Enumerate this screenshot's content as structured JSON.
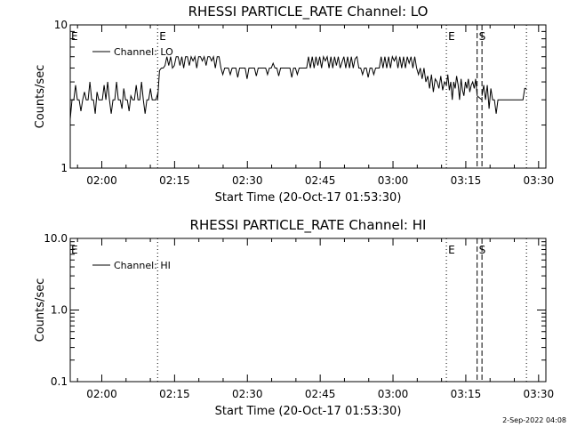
{
  "footer": {
    "timestamp": "2-Sep-2022 04:08"
  },
  "chart_data": [
    {
      "type": "line",
      "title": "RHESSI PARTICLE_RATE Channel: LO",
      "xlabel": "Start Time (20-Oct-17 01:53:30)",
      "ylabel": "Counts/sec",
      "yscale": "log",
      "ylim": [
        1,
        10
      ],
      "ytick_values": [
        1,
        10
      ],
      "ytick_labels": [
        "1",
        "10"
      ],
      "xlim": [
        "01:53:30",
        "03:31:30"
      ],
      "xtick_values": [
        "02:00",
        "02:15",
        "02:30",
        "02:45",
        "03:00",
        "03:15",
        "03:30"
      ],
      "xtick_labels": [
        "02:00",
        "02:15",
        "02:30",
        "02:45",
        "03:00",
        "03:15",
        "03:30"
      ],
      "legend": {
        "label": "Channel: LO",
        "placement": "top-left"
      },
      "event_lines": [
        {
          "time": "02:11:30",
          "style": "dotted",
          "label": "E"
        },
        {
          "time": "03:11:00",
          "style": "dotted",
          "label": "E"
        },
        {
          "time": "03:17:20",
          "style": "dashed",
          "label": "S"
        },
        {
          "time": "03:18:20",
          "style": "dashed",
          "label": ""
        },
        {
          "time": "03:27:30",
          "style": "dotted",
          "label": ""
        }
      ],
      "edge_labels": [
        {
          "text": "E",
          "time": "01:53:30"
        }
      ],
      "series": [
        {
          "name": "Channel: LO",
          "segments": [
            {
              "start": "01:53:30",
              "end": "02:11:30",
              "values": [
                2.2,
                3,
                3,
                3.8,
                3,
                3,
                2.5,
                3,
                3.4,
                3,
                3,
                4,
                3,
                3,
                2.4,
                3.4,
                3,
                3,
                3,
                3.8,
                3,
                4,
                3,
                2.4,
                3,
                3,
                4,
                3,
                3,
                2.6,
                3.6,
                3,
                3,
                2.5,
                3.2,
                3,
                3,
                3.8,
                3,
                3,
                4,
                3,
                2.4,
                3,
                3,
                3.6,
                3,
                3,
                3,
                3.3
              ]
            },
            {
              "start": "02:11:30",
              "end": "03:11:00",
              "values": [
                3,
                4.8,
                5,
                5,
                5.2,
                6,
                5.2,
                6,
                5,
                5.2,
                6,
                6,
                5.2,
                6,
                5,
                6,
                6,
                5.2,
                6,
                5.6,
                6,
                5,
                6,
                6,
                5.6,
                6,
                5.2,
                6,
                6,
                5.6,
                6,
                5,
                6,
                6,
                5,
                4.5,
                5,
                5,
                5,
                4.5,
                5,
                5,
                5,
                4.3,
                5,
                5,
                5,
                5,
                4.2,
                5,
                5,
                5,
                5,
                4.4,
                5,
                5,
                5,
                5,
                5,
                4.5,
                5,
                5,
                5.4,
                5,
                5,
                4.4,
                5,
                5,
                5,
                5,
                5,
                5,
                4.3,
                5,
                5,
                4.5,
                5,
                5,
                5,
                5,
                5,
                6,
                5,
                6,
                5,
                6,
                5.2,
                6,
                5,
                6,
                5.6,
                6,
                5,
                6,
                5,
                6,
                5.2,
                6,
                5,
                5.5,
                6,
                5,
                6,
                5,
                6,
                5,
                5.8,
                6,
                5,
                5,
                4.5,
                5,
                5,
                4.3,
                5,
                5,
                4.5,
                5,
                5,
                5,
                6,
                5,
                6,
                5,
                6,
                5,
                6,
                5.6,
                6,
                5,
                6,
                5,
                6,
                5,
                6,
                5.4,
                6,
                5,
                6,
                5,
                4.5,
                5,
                4.2,
                5,
                4,
                4.4,
                3.6,
                4.5,
                3.4,
                4.2,
                4,
                3.6,
                4.4,
                3.5,
                4,
                3.8
              ]
            },
            {
              "start": "03:11:00",
              "end": "03:17:20",
              "values": [
                3.8,
                4.5,
                3.5,
                4,
                3,
                4,
                3.6,
                4.4,
                3.8,
                3,
                4.2,
                3.5,
                3.2,
                4,
                3.6,
                4.2,
                3.4,
                3.8,
                4,
                3.6,
                4.2,
                3.2
              ]
            },
            {
              "start": "03:17:20",
              "end": "03:18:20",
              "values": [
                3.2,
                3
              ]
            },
            {
              "start": "03:18:20",
              "end": "03:27:30",
              "values": [
                3.2,
                3.8,
                3,
                3.8,
                2.6,
                3.6,
                3,
                3,
                2.4,
                3,
                3,
                3,
                3,
                3,
                3,
                3,
                3,
                3,
                3,
                3,
                3,
                3,
                3,
                3,
                3.6,
                3.6
              ]
            }
          ]
        }
      ]
    },
    {
      "type": "line",
      "title": "RHESSI PARTICLE_RATE Channel: HI",
      "xlabel": "Start Time (20-Oct-17 01:53:30)",
      "ylabel": "Counts/sec",
      "yscale": "log",
      "ylim": [
        0.1,
        10
      ],
      "ytick_values": [
        0.1,
        1,
        10
      ],
      "ytick_labels": [
        "0.1",
        "1.0",
        "10.0"
      ],
      "xlim": [
        "01:53:30",
        "03:31:30"
      ],
      "xtick_values": [
        "02:00",
        "02:15",
        "02:30",
        "02:45",
        "03:00",
        "03:15",
        "03:30"
      ],
      "xtick_labels": [
        "02:00",
        "02:15",
        "02:30",
        "02:45",
        "03:00",
        "03:15",
        "03:30"
      ],
      "legend": {
        "label": "Channel: HI",
        "placement": "top-left"
      },
      "event_lines": [
        {
          "time": "02:11:30",
          "style": "dotted",
          "label": ""
        },
        {
          "time": "03:11:00",
          "style": "dotted",
          "label": "E"
        },
        {
          "time": "03:17:20",
          "style": "dashed",
          "label": "S"
        },
        {
          "time": "03:18:20",
          "style": "dashed",
          "label": ""
        },
        {
          "time": "03:27:30",
          "style": "dotted",
          "label": ""
        }
      ],
      "edge_labels": [
        {
          "text": "E",
          "time": "01:53:30"
        }
      ],
      "series": [
        {
          "name": "Channel: HI",
          "segments": []
        }
      ]
    }
  ]
}
